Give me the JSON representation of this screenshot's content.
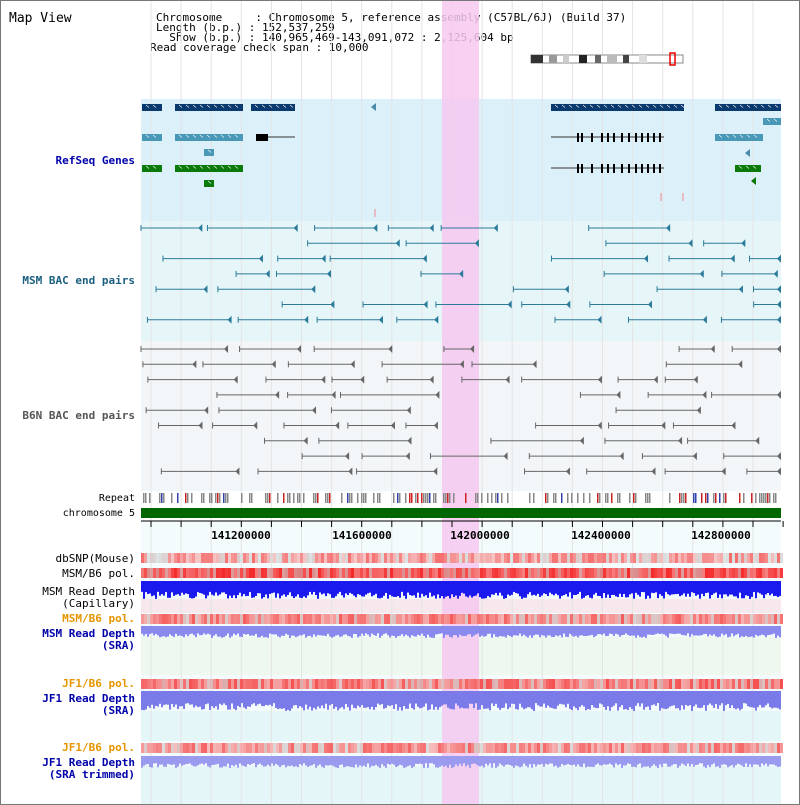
{
  "header": {
    "map_title": "Map View",
    "line1": "Chromosome     : Chromosome 5, reference assembly (C57BL/6J) (Build 37)",
    "line2": "Length (b.p.) : 152,537,259",
    "line3": "  Show (b.p.) : 140,965,469-143,091,072 : 2,125,604 bp",
    "line4": "Read coverage check span : 10,000"
  },
  "tracks": {
    "refseq": "RefSeq Genes",
    "msm_bac": "MSM BAC end pairs",
    "b6n_bac": "B6N BAC end pairs",
    "repeat": "Repeat",
    "chromosome": "chromosome 5",
    "dbsnp": "dbSNP(Mouse)",
    "msm_b6_pol_1": "MSM/B6 pol.",
    "msm_depth_cap_1": "MSM Read Depth",
    "msm_depth_cap_2": "(Capillary)",
    "msm_b6_pol_2": "MSM/B6 pol.",
    "msm_depth_sra_1": "MSM Read Depth",
    "msm_depth_sra_2": "(SRA)",
    "jf1_b6_pol_1": "JF1/B6 pol.",
    "jf1_depth_sra_1": "JF1 Read Depth",
    "jf1_depth_sra_2": "(SRA)",
    "jf1_b6_pol_2": "JF1/B6 pol.",
    "jf1_depth_trim_1": "JF1 Read Depth",
    "jf1_depth_trim_2": "(SRA trimmed)"
  },
  "axis": {
    "ticks": [
      "141200000",
      "141600000",
      "142000000",
      "142400000",
      "142800000"
    ]
  },
  "colors": {
    "refseq_label": "#0000aa",
    "msm_bac_label": "#1a5f80",
    "b6n_label": "#555555",
    "pol_label": "#e69500",
    "depth_label": "#0000aa",
    "highlight": "#f6c8f0",
    "chromosome_bar": "#006600"
  }
}
